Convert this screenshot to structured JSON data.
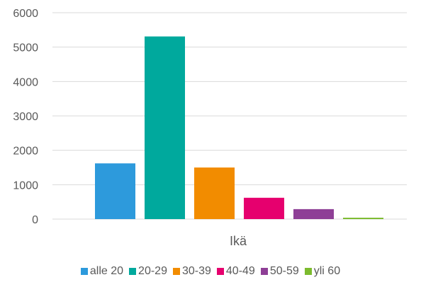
{
  "chart_data": {
    "type": "bar",
    "categories": [
      "Ikä"
    ],
    "series": [
      {
        "name": "alle 20",
        "values": [
          1620
        ],
        "color": "#2D9ADC"
      },
      {
        "name": "20-29",
        "values": [
          5310
        ],
        "color": "#00A99D"
      },
      {
        "name": "30-39",
        "values": [
          1500
        ],
        "color": "#F28C00"
      },
      {
        "name": "40-49",
        "values": [
          620
        ],
        "color": "#E6006E"
      },
      {
        "name": "50-59",
        "values": [
          290
        ],
        "color": "#8E3F96"
      },
      {
        "name": "yli 60",
        "values": [
          40
        ],
        "color": "#7CBB2E"
      }
    ],
    "ylim": [
      0,
      6000
    ],
    "yticks": [
      "0",
      "1000",
      "2000",
      "3000",
      "4000",
      "5000",
      "6000"
    ],
    "grid": true,
    "legend_position": "bottom"
  }
}
